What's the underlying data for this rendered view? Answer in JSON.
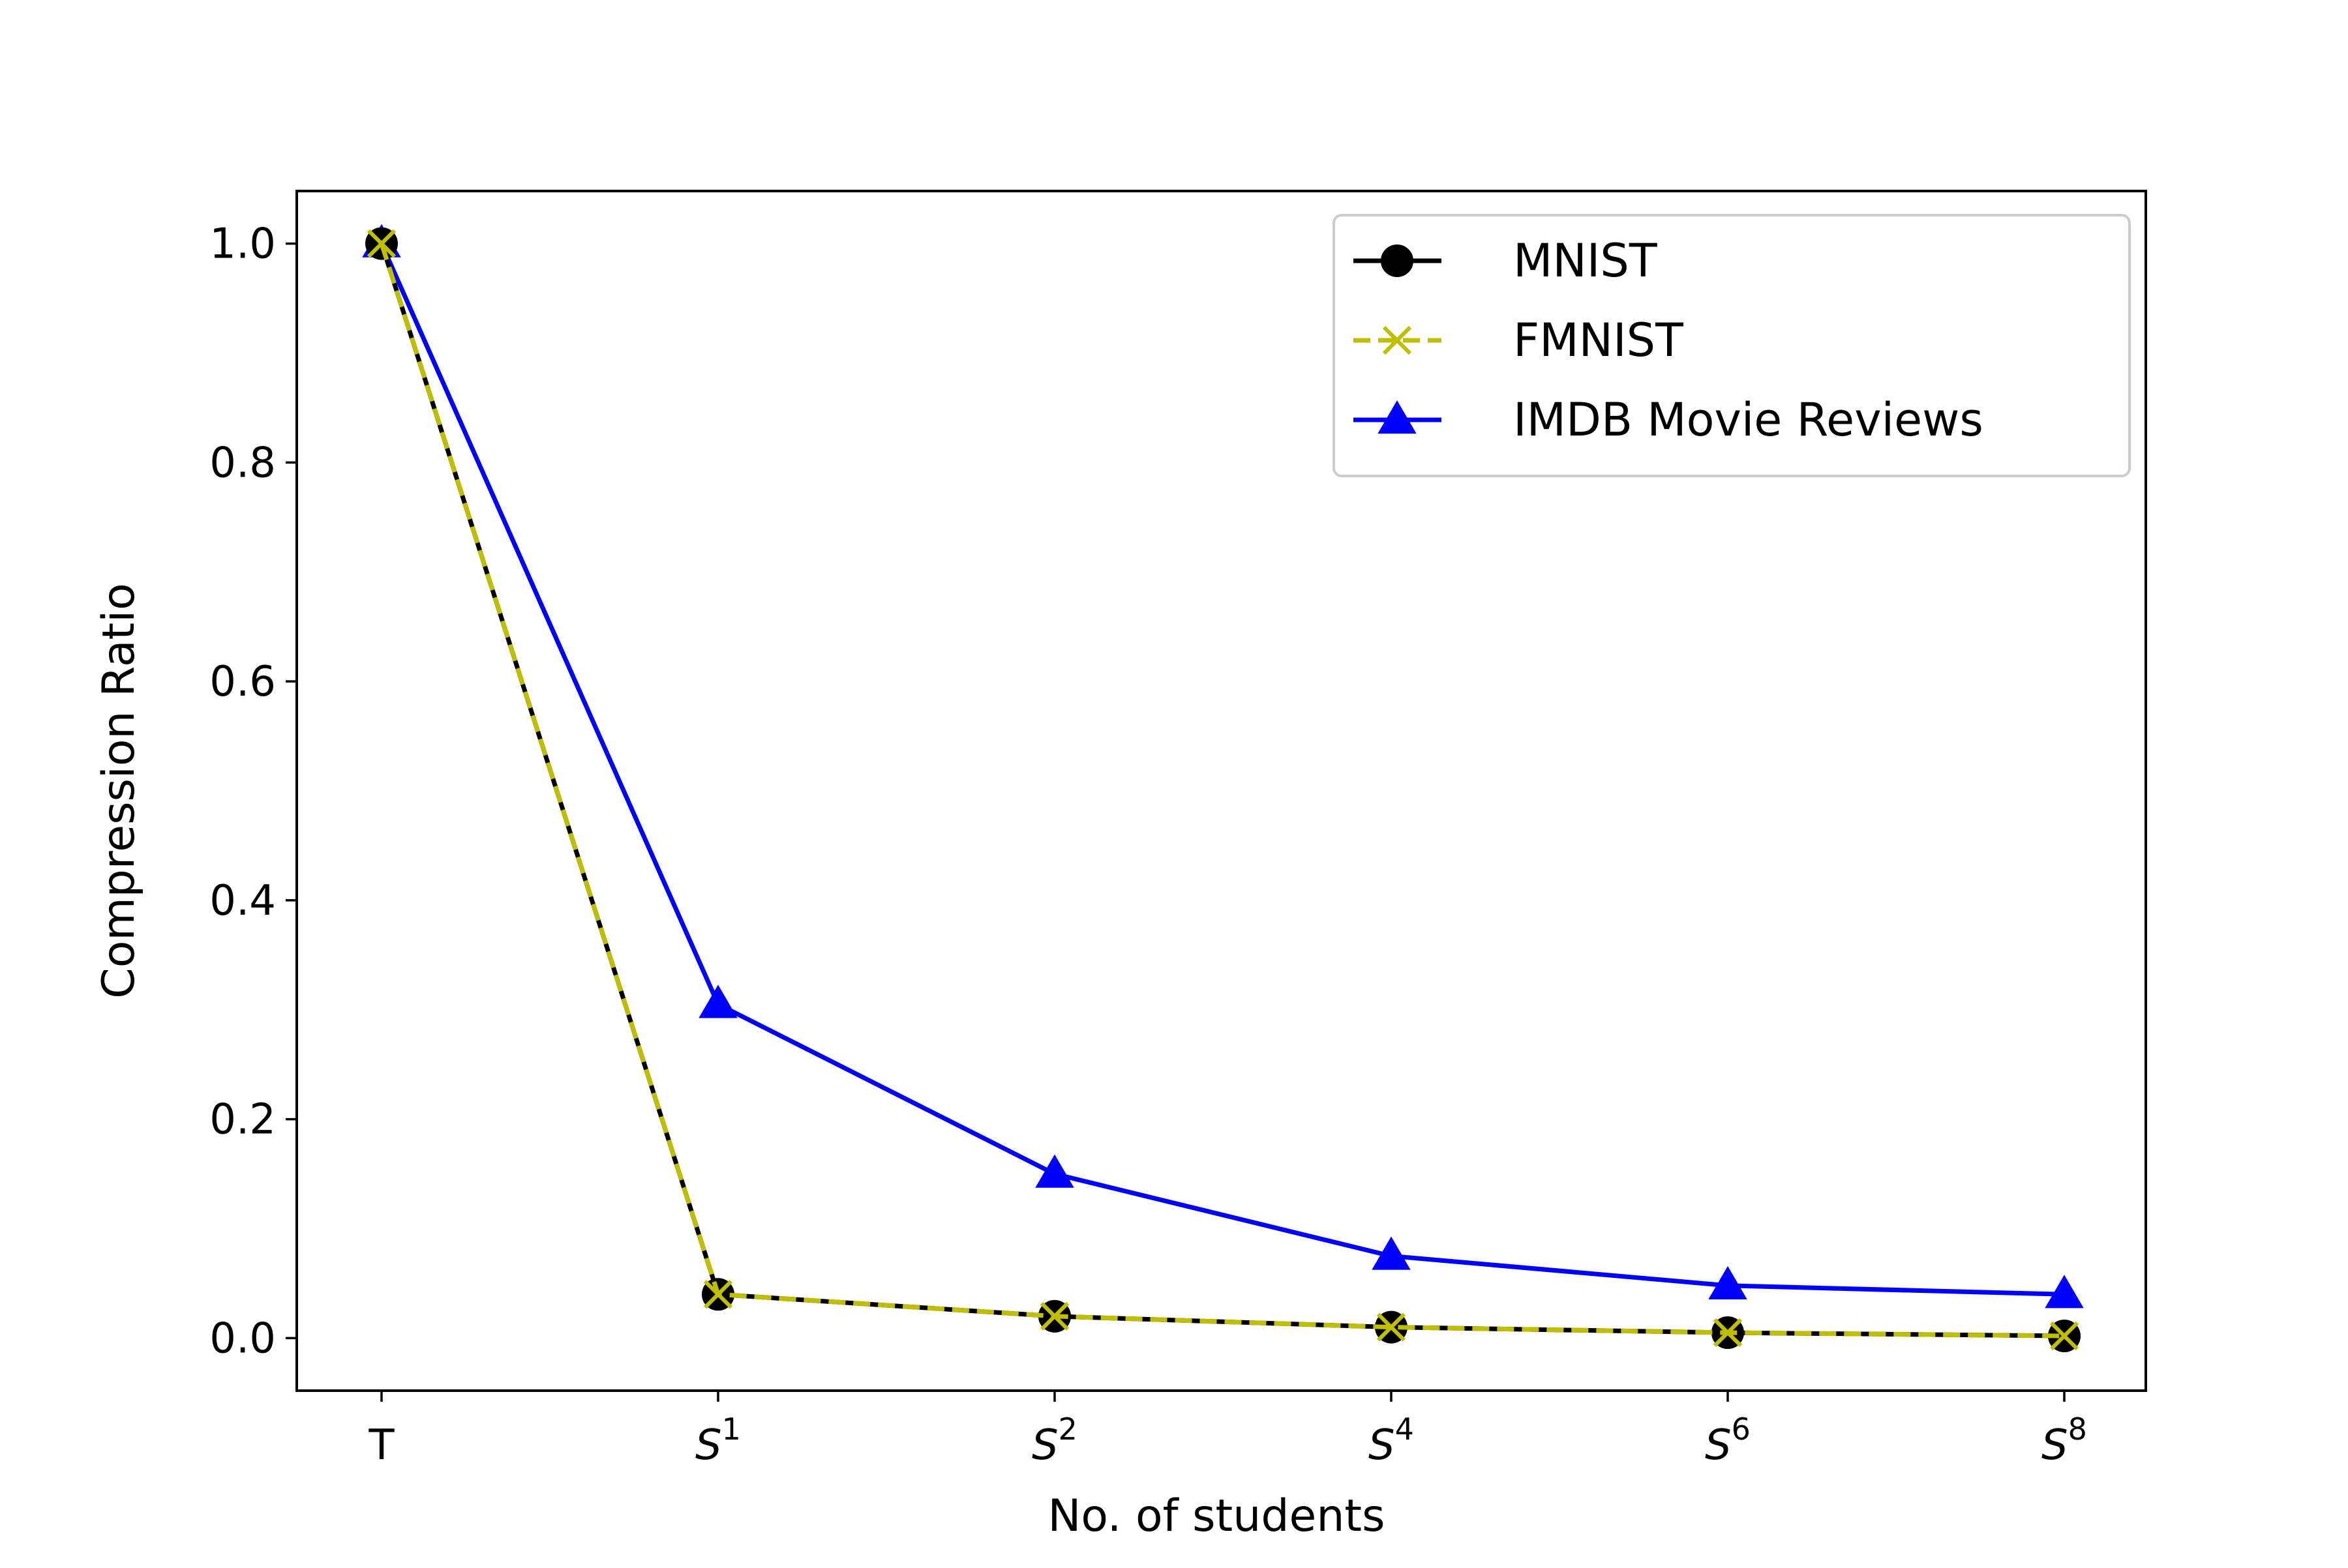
{
  "chart_data": {
    "type": "line",
    "xlabel": "No. of students",
    "ylabel": "Compression Ratio",
    "categories": [
      {
        "base": "T",
        "sup": ""
      },
      {
        "base": "S",
        "sup": "1"
      },
      {
        "base": "S",
        "sup": "2"
      },
      {
        "base": "S",
        "sup": "4"
      },
      {
        "base": "S",
        "sup": "6"
      },
      {
        "base": "S",
        "sup": "8"
      }
    ],
    "ylim": [
      -0.048,
      1.048
    ],
    "yticks": [
      "0.0",
      "0.2",
      "0.4",
      "0.6",
      "0.8",
      "1.0"
    ],
    "grid": false,
    "legend_position": "top-right",
    "series": [
      {
        "name": "MNIST",
        "values": [
          1.0,
          0.04,
          0.02,
          0.01,
          0.005,
          0.002
        ],
        "color": "#000000",
        "linestyle": "solid",
        "marker": "circle"
      },
      {
        "name": "FMNIST",
        "values": [
          1.0,
          0.04,
          0.02,
          0.01,
          0.005,
          0.002
        ],
        "color": "#bfbf00",
        "linestyle": "dashed",
        "marker": "x"
      },
      {
        "name": "IMDB Movie Reviews",
        "values": [
          1.0,
          0.305,
          0.15,
          0.075,
          0.048,
          0.04
        ],
        "color": "#0000ff",
        "linestyle": "solid",
        "marker": "triangle"
      }
    ]
  }
}
